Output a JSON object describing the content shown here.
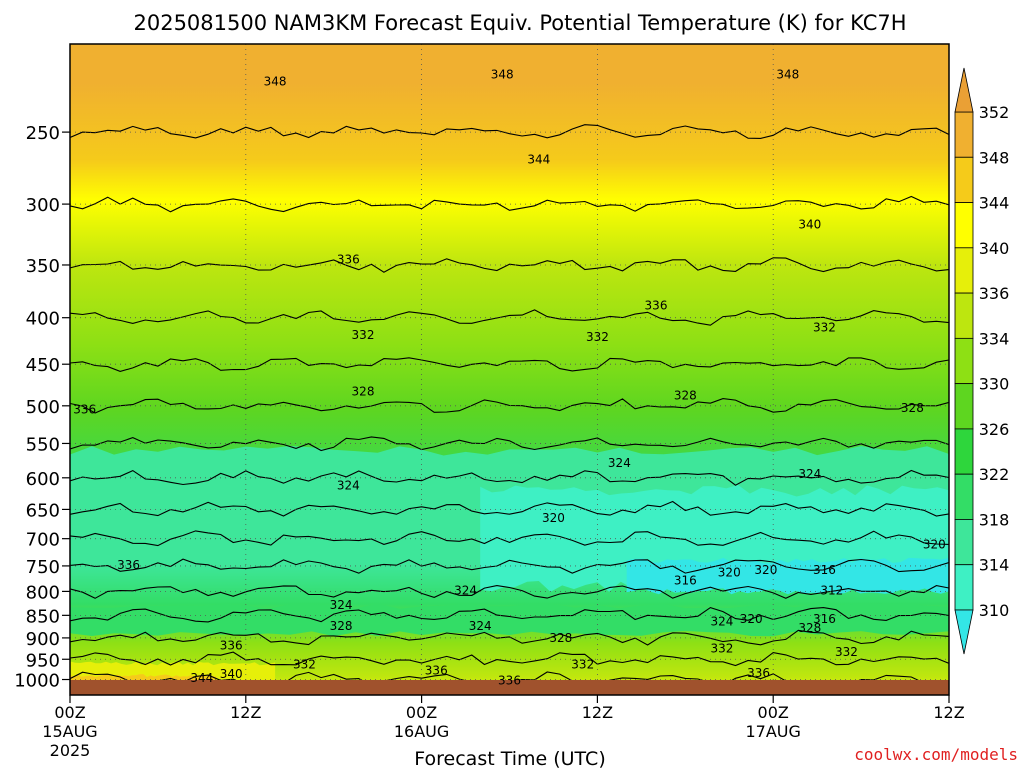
{
  "chart_data": {
    "type": "heatmap",
    "title": "2025081500 NAM3KM Forecast Equiv. Potential Temperature (K) for KC7H",
    "xlabel": "Forecast Time (UTC)",
    "ylabel": "",
    "x_ticks": [
      {
        "hours": 0,
        "label": "00Z",
        "sub": "15AUG",
        "sub2": "2025"
      },
      {
        "hours": 12,
        "label": "12Z",
        "sub": "",
        "sub2": ""
      },
      {
        "hours": 24,
        "label": "00Z",
        "sub": "16AUG",
        "sub2": ""
      },
      {
        "hours": 36,
        "label": "12Z",
        "sub": "",
        "sub2": ""
      },
      {
        "hours": 48,
        "label": "00Z",
        "sub": "17AUG",
        "sub2": ""
      },
      {
        "hours": 60,
        "label": "12Z",
        "sub": "",
        "sub2": ""
      }
    ],
    "xlim_hours": [
      0,
      60
    ],
    "y_axis": "pressure (hPa), log scale, inverted",
    "y_ticks": [
      250,
      300,
      350,
      400,
      450,
      500,
      550,
      600,
      650,
      700,
      750,
      800,
      850,
      900,
      950,
      1000
    ],
    "ylim_hpa": [
      200,
      1040
    ],
    "grid": true,
    "colorbar": {
      "placement": "right",
      "levels": [
        310,
        314,
        318,
        322,
        326,
        330,
        334,
        336,
        340,
        344,
        348,
        352
      ],
      "colors": [
        "#33e6e6",
        "#3ef0c4",
        "#3ee69a",
        "#33dd66",
        "#2ed63c",
        "#5ed620",
        "#8ee014",
        "#bde60f",
        "#e6ef0a",
        "#ffff00",
        "#f5cb1a",
        "#f0b030",
        "#eaa035"
      ]
    },
    "contour_interval_K": 4,
    "series": [
      {
        "name": "mean_profile_K",
        "pressure_hpa": [
          200,
          250,
          300,
          350,
          400,
          450,
          500,
          550,
          600,
          650,
          700,
          750,
          800,
          850,
          900,
          950,
          1000
        ],
        "values": [
          350,
          346,
          343,
          339,
          336,
          333,
          330,
          326,
          323,
          322,
          320,
          318,
          318,
          322,
          330,
          334,
          338
        ]
      }
    ],
    "contour_labels": [
      {
        "text": "348",
        "hours": 14,
        "hpa": 220
      },
      {
        "text": "348",
        "hours": 29.5,
        "hpa": 216
      },
      {
        "text": "348",
        "hours": 49,
        "hpa": 216
      },
      {
        "text": "344",
        "hours": 32,
        "hpa": 268
      },
      {
        "text": "340",
        "hours": 50.5,
        "hpa": 316
      },
      {
        "text": "336",
        "hours": 19,
        "hpa": 345
      },
      {
        "text": "336",
        "hours": 40,
        "hpa": 388
      },
      {
        "text": "332",
        "hours": 20,
        "hpa": 418
      },
      {
        "text": "332",
        "hours": 36,
        "hpa": 420
      },
      {
        "text": "332",
        "hours": 51.5,
        "hpa": 410
      },
      {
        "text": "336",
        "hours": 1,
        "hpa": 505
      },
      {
        "text": "328",
        "hours": 20,
        "hpa": 482
      },
      {
        "text": "328",
        "hours": 42,
        "hpa": 487
      },
      {
        "text": "328",
        "hours": 57.5,
        "hpa": 503
      },
      {
        "text": "324",
        "hours": 37.5,
        "hpa": 578
      },
      {
        "text": "324",
        "hours": 19,
        "hpa": 612
      },
      {
        "text": "324",
        "hours": 50.5,
        "hpa": 594
      },
      {
        "text": "320",
        "hours": 33,
        "hpa": 664
      },
      {
        "text": "320",
        "hours": 59,
        "hpa": 710
      },
      {
        "text": "336",
        "hours": 4,
        "hpa": 748
      },
      {
        "text": "320",
        "hours": 45,
        "hpa": 763
      },
      {
        "text": "320",
        "hours": 47.5,
        "hpa": 758
      },
      {
        "text": "316",
        "hours": 51.5,
        "hpa": 758
      },
      {
        "text": "316",
        "hours": 42,
        "hpa": 778
      },
      {
        "text": "312",
        "hours": 52,
        "hpa": 798
      },
      {
        "text": "324",
        "hours": 27,
        "hpa": 798
      },
      {
        "text": "324",
        "hours": 18.5,
        "hpa": 828
      },
      {
        "text": "324",
        "hours": 28,
        "hpa": 873
      },
      {
        "text": "324",
        "hours": 44.5,
        "hpa": 863
      },
      {
        "text": "320",
        "hours": 46.5,
        "hpa": 858
      },
      {
        "text": "316",
        "hours": 51.5,
        "hpa": 858
      },
      {
        "text": "328",
        "hours": 18.5,
        "hpa": 873
      },
      {
        "text": "328",
        "hours": 33.5,
        "hpa": 900
      },
      {
        "text": "328",
        "hours": 50.5,
        "hpa": 878
      },
      {
        "text": "336",
        "hours": 11,
        "hpa": 918
      },
      {
        "text": "332",
        "hours": 44.5,
        "hpa": 924
      },
      {
        "text": "332",
        "hours": 53,
        "hpa": 933
      },
      {
        "text": "332",
        "hours": 16,
        "hpa": 963
      },
      {
        "text": "332",
        "hours": 35,
        "hpa": 963
      },
      {
        "text": "340",
        "hours": 11,
        "hpa": 986
      },
      {
        "text": "344",
        "hours": 9,
        "hpa": 996
      },
      {
        "text": "336",
        "hours": 25,
        "hpa": 978
      },
      {
        "text": "336",
        "hours": 30,
        "hpa": 1003
      },
      {
        "text": "336",
        "hours": 47,
        "hpa": 984
      }
    ]
  },
  "watermark": "coolwx.com/models"
}
